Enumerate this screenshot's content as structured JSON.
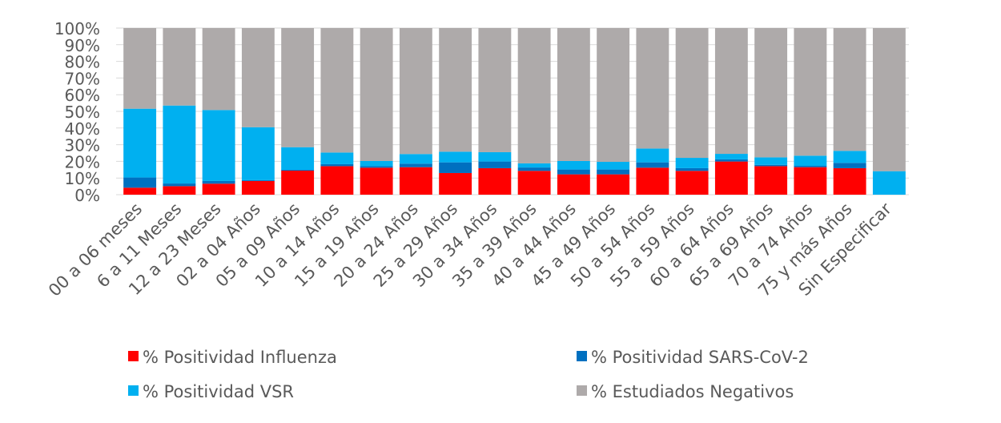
{
  "chart_data": {
    "type": "bar",
    "stacked": true,
    "percent_stacked": true,
    "title": "",
    "xlabel": "",
    "ylabel": "",
    "ylim": [
      0,
      100
    ],
    "y_ticks": [
      "0%",
      "10%",
      "20%",
      "30%",
      "40%",
      "50%",
      "60%",
      "70%",
      "80%",
      "90%",
      "100%"
    ],
    "grid": true,
    "legend_position": "bottom",
    "categories": [
      "00 a 06 meses",
      "6 a 11 Meses",
      "12 a 23 Meses",
      "02 a 04 Años",
      "05 a 09 Años",
      "10 a 14 Años",
      "15 a 19 Años",
      "20 a 24 Años",
      "25 a 29 Años",
      "30 a 34 Años",
      "35 a 39 Años",
      "40 a 44 Años",
      "45 a 49 Años",
      "50 a 54 Años",
      "55 a 59 Años",
      "60 a 64 Años",
      "65 a 69 Años",
      "70 a 74 Años",
      "75 y más Años",
      "Sin Especificar"
    ],
    "series": [
      {
        "name": "% Positividad Influenza",
        "color": "#ff0000",
        "values": [
          4.2,
          5.1,
          6.6,
          8.2,
          14.4,
          17.1,
          16.2,
          16.5,
          13.0,
          15.9,
          14.3,
          12.2,
          12.2,
          16.2,
          14.3,
          19.9,
          17.1,
          16.5,
          15.9,
          0
        ]
      },
      {
        "name": "% Positividad SARS-CoV-2",
        "color": "#0070c0",
        "values": [
          6.1,
          1.6,
          1.6,
          0.5,
          0.5,
          1.2,
          0.9,
          2.1,
          6.4,
          4.0,
          2.0,
          2.9,
          2.9,
          3.2,
          1.6,
          1.3,
          0.8,
          0.8,
          3.2,
          0
        ]
      },
      {
        "name": "% Positividad VSR",
        "color": "#00b0f0",
        "values": [
          41.3,
          46.8,
          42.6,
          31.8,
          13.6,
          7.0,
          3.1,
          5.8,
          6.4,
          5.6,
          2.5,
          5.1,
          4.6,
          8.3,
          6.2,
          3.3,
          4.5,
          6.1,
          7.2,
          14.1
        ]
      },
      {
        "name": "% Estudiados Negativos",
        "color": "#aeaaaa",
        "values": [
          48.4,
          46.5,
          49.2,
          59.5,
          71.5,
          74.7,
          79.8,
          75.6,
          74.2,
          74.5,
          81.2,
          79.8,
          80.3,
          72.3,
          77.9,
          75.5,
          77.6,
          76.6,
          73.7,
          85.9
        ]
      }
    ]
  }
}
